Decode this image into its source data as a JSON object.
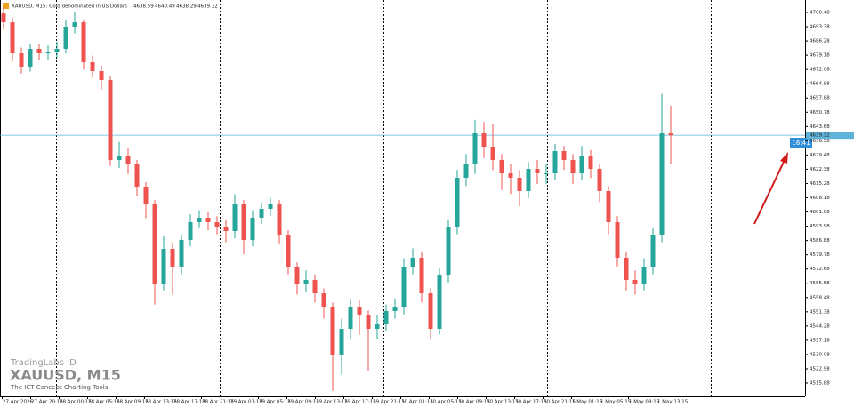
{
  "chart_data": {
    "type": "candlestick",
    "title": "XAUUSD, M15:  Gold denominated in US Dollars",
    "ohlc_header": [
      4638.59,
      4640.49,
      4638.29,
      4639.32
    ],
    "up_color": "#26a69a",
    "down_color": "#ef5350",
    "open": [
      4700.0,
      4695.61,
      4680.12,
      4673.48,
      4682.33,
      4680.12,
      4681.0,
      4682.33,
      4693.4,
      4695.61,
      4675.69,
      4671.26,
      4666.84,
      4626.99,
      4629.21,
      4624.78,
      4613.71,
      4604.86,
      4565.02,
      4582.72,
      4573.87,
      4587.15,
      4596.0,
      4598.22,
      4596.0,
      4593.79,
      4591.58,
      4604.86,
      4587.15,
      4598.22,
      4602.65,
      4604.86,
      4589.36,
      4573.87,
      4565.02,
      4567.23,
      4560.59,
      4553.95,
      4529.6,
      4542.88,
      4553.95,
      4549.52,
      4542.88,
      4545.09,
      4551.73,
      4553.95,
      4573.87,
      4578.3,
      4560.59,
      4542.88,
      4569.44,
      4593.79,
      4618.14,
      4624.78,
      4640.27,
      4633.63,
      4626.99,
      4620.35,
      4618.14,
      4611.5,
      4622.57,
      4620.35,
      4620.35,
      4631.42,
      4626.99,
      4620.35,
      4629.21,
      4622.57,
      4611.5,
      4596.0,
      4578.3,
      4567.23,
      4565.02,
      4573.87,
      4589.36,
      4640.27
    ],
    "high": [
      4703.0,
      4698.0,
      4683.0,
      4685.0,
      4685.0,
      4684.0,
      4686.0,
      4697.0,
      4701.0,
      4697.0,
      4679.0,
      4674.0,
      4669.0,
      4636.0,
      4633.0,
      4627.0,
      4616.0,
      4607.0,
      4589.0,
      4586.0,
      4590.0,
      4600.0,
      4602.0,
      4601.0,
      4599.0,
      4597.0,
      4610.0,
      4607.0,
      4602.0,
      4606.0,
      4608.0,
      4607.0,
      4592.0,
      4576.0,
      4572.0,
      4570.0,
      4563.0,
      4556.0,
      4548.0,
      4558.0,
      4557.0,
      4552.0,
      4550.0,
      4555.0,
      4558.0,
      4578.0,
      4583.0,
      4581.0,
      4563.0,
      4573.0,
      4597.0,
      4622.0,
      4630.0,
      4647.0,
      4646.0,
      4645.0,
      4630.0,
      4625.0,
      4622.0,
      4626.0,
      4627.0,
      4625.0,
      4635.0,
      4634.0,
      4630.0,
      4634.0,
      4632.0,
      4625.0,
      4614.0,
      4599.0,
      4581.0,
      4572.0,
      4578.0,
      4593.0,
      4660.0,
      4654.0
    ],
    "low": [
      4692.0,
      4676.0,
      4670.0,
      4671.0,
      4677.0,
      4677.0,
      4678.0,
      4680.0,
      4690.0,
      4672.0,
      4668.0,
      4662.0,
      4624.0,
      4623.0,
      4620.0,
      4609.0,
      4598.0,
      4555.0,
      4562.0,
      4560.0,
      4570.0,
      4584.0,
      4593.0,
      4592.0,
      4590.0,
      4586.0,
      4588.0,
      4580.0,
      4584.0,
      4595.0,
      4599.0,
      4585.0,
      4570.0,
      4560.0,
      4561.0,
      4556.0,
      4548.0,
      4512.0,
      4520.0,
      4538.0,
      4540.0,
      4522.0,
      4538.0,
      4542.0,
      4548.0,
      4550.0,
      4570.0,
      4556.0,
      4538.0,
      4540.0,
      4566.0,
      4590.0,
      4614.0,
      4620.0,
      4628.0,
      4622.0,
      4612.0,
      4610.0,
      4604.0,
      4608.0,
      4615.0,
      4615.0,
      4617.0,
      4622.0,
      4615.0,
      4617.0,
      4618.0,
      4606.0,
      4590.0,
      4574.0,
      4562.0,
      4560.0,
      4562.0,
      4570.0,
      4586.0,
      4625.0
    ],
    "close": [
      4695.61,
      4680.12,
      4673.48,
      4682.33,
      4680.12,
      4681.0,
      4682.33,
      4693.4,
      4695.61,
      4675.69,
      4671.26,
      4666.84,
      4626.99,
      4629.21,
      4624.78,
      4613.71,
      4604.86,
      4565.02,
      4582.72,
      4573.87,
      4587.15,
      4596.0,
      4598.22,
      4596.0,
      4593.79,
      4591.58,
      4604.86,
      4587.15,
      4598.22,
      4602.65,
      4604.86,
      4589.36,
      4573.87,
      4565.02,
      4567.23,
      4560.59,
      4553.95,
      4529.6,
      4542.88,
      4553.95,
      4549.52,
      4542.88,
      4545.09,
      4551.73,
      4553.95,
      4573.87,
      4578.3,
      4560.59,
      4542.88,
      4569.44,
      4593.79,
      4618.14,
      4624.78,
      4640.27,
      4633.63,
      4626.99,
      4620.35,
      4618.14,
      4611.5,
      4622.57,
      4620.35,
      4620.35,
      4631.42,
      4626.99,
      4620.35,
      4629.21,
      4622.57,
      4611.5,
      4596.0,
      4578.3,
      4567.23,
      4565.02,
      4573.87,
      4589.36,
      4640.27,
      4639.32
    ],
    "ylim": [
      4509.24,
      4706.68
    ],
    "yticks": [
      4700.48,
      4693.38,
      4686.28,
      4679.18,
      4672.08,
      4664.98,
      4657.88,
      4650.78,
      4643.68,
      4636.58,
      4629.48,
      4622.38,
      4615.28,
      4608.18,
      4601.08,
      4593.98,
      4586.88,
      4579.78,
      4572.68,
      4565.58,
      4558.48,
      4551.38,
      4544.28,
      4537.18,
      4530.08,
      4522.98,
      4515.88
    ],
    "time_labels": [
      "27 Apr 2026",
      "27 Apr 20:15",
      "28 Apr 00:15",
      "28 Apr 05:15",
      "28 Apr 09:15",
      "28 Apr 13:15",
      "28 Apr 17:15",
      "28 Apr 21:15",
      "29 Apr 01:15",
      "29 Apr 05:15",
      "29 Apr 09:15",
      "29 Apr 13:15",
      "29 Apr 17:15",
      "29 Apr 21:15",
      "30 Apr 01:15",
      "30 Apr 05:15",
      "30 Apr 09:15",
      "30 Apr 13:15",
      "30 Apr 17:15",
      "30 Apr 21:15",
      "1 May 01:15",
      "1 May 05:15",
      "1 May 09:15",
      "1 May 13:15"
    ],
    "current_price": 4639.32,
    "current_price_color": "#5fb3d9",
    "time_annotation": "16:41",
    "watermark": {
      "brand": "TradingLabs ID",
      "symbol": "XAUUSD, M15",
      "tagline": "The ICT Concept Charting Tools"
    }
  }
}
